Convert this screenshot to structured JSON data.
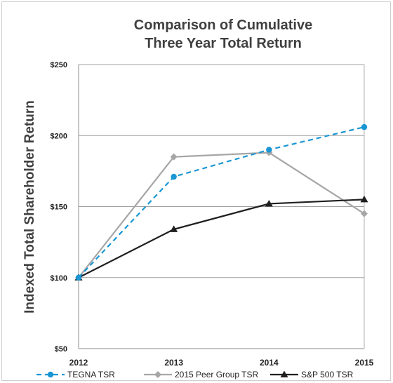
{
  "chart_data": {
    "type": "line",
    "title_lines": [
      "Comparison of Cumulative",
      "Three Year Total Return"
    ],
    "xlabel": "",
    "ylabel": "Indexed Total Shareholder Return",
    "categories": [
      "2012",
      "2013",
      "2014",
      "2015"
    ],
    "ylim": [
      50,
      250
    ],
    "yticks": [
      50,
      100,
      150,
      200,
      250
    ],
    "ytick_labels": [
      "$50",
      "$100",
      "$150",
      "$200",
      "$250"
    ],
    "grid": "horizontal",
    "legend_position": "bottom",
    "series": [
      {
        "name": "TEGNA TSR",
        "values": [
          100,
          171,
          190,
          206
        ],
        "color": "#1a96d4",
        "style": "dashed",
        "marker": "circle"
      },
      {
        "name": "2015 Peer Group TSR",
        "values": [
          100,
          185,
          188,
          145
        ],
        "color": "#a6a6a6",
        "style": "solid",
        "marker": "diamond"
      },
      {
        "name": "S&P 500 TSR",
        "values": [
          100,
          134,
          152,
          155
        ],
        "color": "#1f1f1f",
        "style": "solid",
        "marker": "triangle"
      }
    ]
  }
}
